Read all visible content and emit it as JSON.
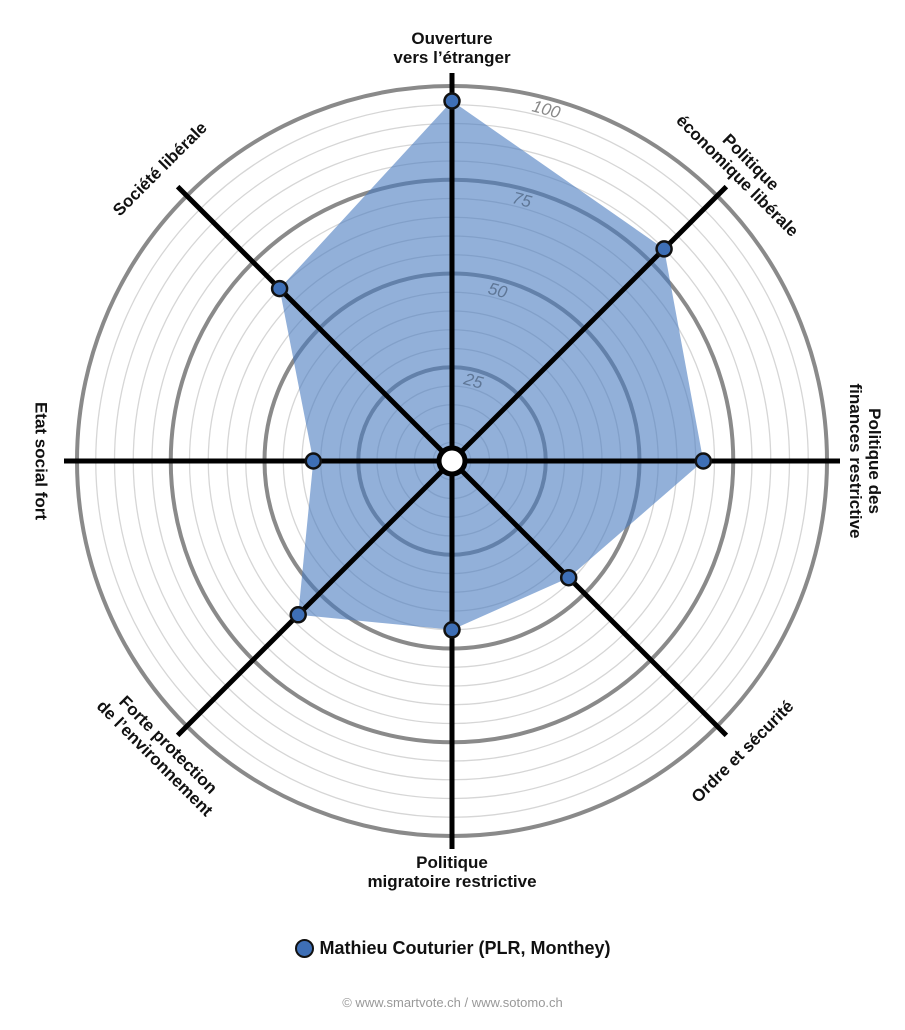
{
  "chart_data": {
    "type": "radar",
    "axes": [
      "Ouverture|vers l’étranger",
      "Politique|économique libérale",
      "Politique des|finances restrictive",
      "Ordre et sécurité",
      "Politique|migratoire restrictive",
      "Forte protection|de l’environnement",
      "Etat social fort",
      "Société libérale"
    ],
    "range": [
      0,
      100
    ],
    "ticks": [
      "25",
      "50",
      "75",
      "100"
    ],
    "series": [
      {
        "name": "Mathieu Couturier (PLR, Monthey)",
        "values": [
          96,
          80,
          67,
          44,
          45,
          58,
          37,
          65
        ]
      }
    ]
  },
  "legend": {
    "label": "Mathieu Couturier (PLR, Monthey)"
  },
  "footer": {
    "text": "© www.smartvote.ch / www.sotomo.ch"
  },
  "colors": {
    "fill": "#4a7cc0",
    "marker": "#3e6fb6",
    "spoke": "#000000",
    "ring_major": "#8a8a8a",
    "ring_minor": "#d6d6d6"
  }
}
